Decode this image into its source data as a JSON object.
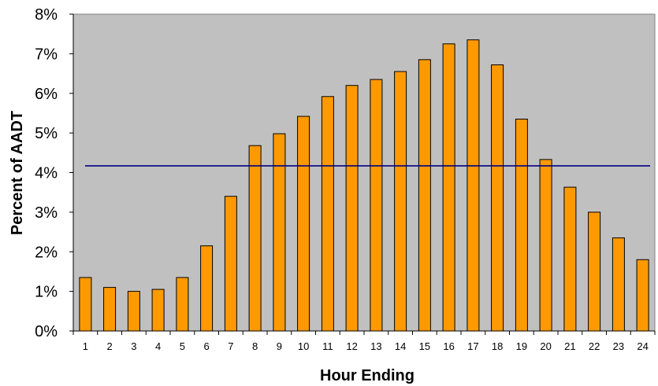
{
  "chart_data": {
    "type": "bar",
    "title": "",
    "xlabel": "Hour Ending",
    "ylabel": "Percent of AADT",
    "categories": [
      "1",
      "2",
      "3",
      "4",
      "5",
      "6",
      "7",
      "8",
      "9",
      "10",
      "11",
      "12",
      "13",
      "14",
      "15",
      "16",
      "17",
      "18",
      "19",
      "20",
      "21",
      "22",
      "23",
      "24"
    ],
    "values": [
      1.35,
      1.1,
      1.0,
      1.05,
      1.35,
      2.15,
      3.4,
      4.68,
      4.98,
      5.42,
      5.92,
      6.2,
      6.35,
      6.55,
      6.85,
      7.25,
      7.35,
      6.72,
      5.35,
      4.33,
      3.63,
      3.0,
      2.35,
      1.8
    ],
    "ylim": [
      0,
      8
    ],
    "yticks": [
      0,
      1,
      2,
      3,
      4,
      5,
      6,
      7,
      8
    ],
    "ytick_labels": [
      "0%",
      "1%",
      "2%",
      "3%",
      "4%",
      "5%",
      "6%",
      "7%",
      "8%"
    ],
    "reference_line": {
      "value": 4.17,
      "color": "#000080"
    },
    "grid": false,
    "legend": "none",
    "colors": {
      "bar_fill": "#FF9900",
      "bar_stroke": "#000000",
      "plot_background": "#C0C0C0"
    }
  }
}
